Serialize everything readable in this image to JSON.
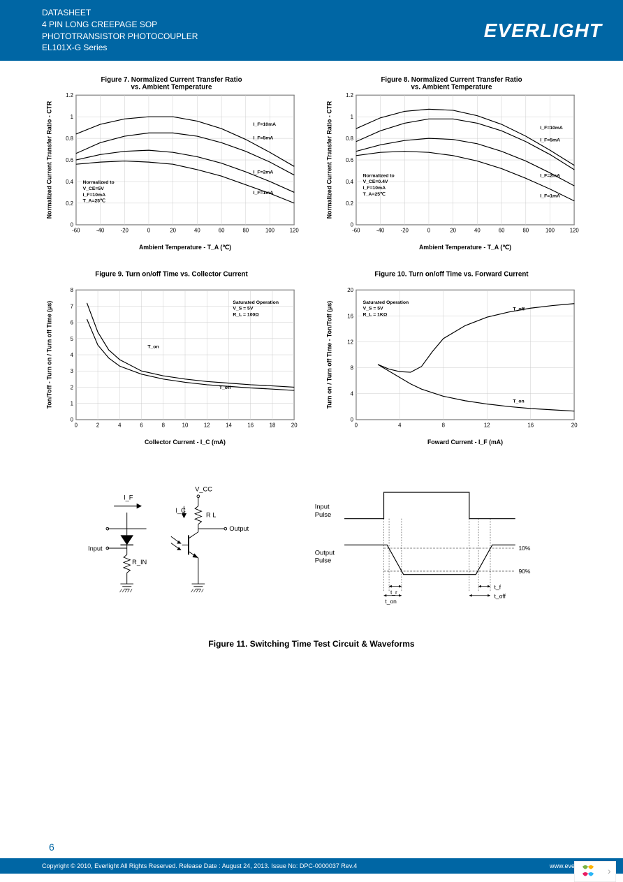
{
  "header": {
    "line1": "DATASHEET",
    "line2": "4 PIN LONG CREEPAGE SOP",
    "line3": "PHOTOTRANSISTOR PHOTOCOUPLER",
    "line4": "EL101X-G Series",
    "brand": "EVERLIGHT"
  },
  "fig7": {
    "title": "Figure 7. Normalized Current Transfer Ratio\nvs. Ambient Temperature",
    "xlabel": "Ambient Temperature - T_A (℃)",
    "ylabel": "Normalized Current Transfer Ratio - CTR",
    "xlim": [
      -60,
      120
    ],
    "ylim": [
      0,
      1.2
    ],
    "xticks": [
      -60,
      -40,
      -20,
      0,
      20,
      40,
      60,
      80,
      100,
      120
    ],
    "yticks": [
      0,
      0.2,
      0.4,
      0.6,
      0.8,
      1.0,
      1.2
    ],
    "series": [
      {
        "label": "I_F=10mA",
        "data": [
          [
            -60,
            0.84
          ],
          [
            -40,
            0.93
          ],
          [
            -20,
            0.98
          ],
          [
            0,
            1.0
          ],
          [
            20,
            1.0
          ],
          [
            40,
            0.96
          ],
          [
            60,
            0.89
          ],
          [
            80,
            0.79
          ],
          [
            100,
            0.67
          ],
          [
            120,
            0.54
          ]
        ]
      },
      {
        "label": "I_F=5mA",
        "data": [
          [
            -60,
            0.66
          ],
          [
            -40,
            0.76
          ],
          [
            -20,
            0.82
          ],
          [
            0,
            0.85
          ],
          [
            20,
            0.85
          ],
          [
            40,
            0.82
          ],
          [
            60,
            0.76
          ],
          [
            80,
            0.68
          ],
          [
            100,
            0.58
          ],
          [
            120,
            0.46
          ]
        ]
      },
      {
        "label": "I_F=2mA",
        "data": [
          [
            -60,
            0.6
          ],
          [
            -40,
            0.65
          ],
          [
            -20,
            0.68
          ],
          [
            0,
            0.69
          ],
          [
            20,
            0.67
          ],
          [
            40,
            0.63
          ],
          [
            60,
            0.57
          ],
          [
            80,
            0.49
          ],
          [
            100,
            0.4
          ],
          [
            120,
            0.3
          ]
        ]
      },
      {
        "label": "I_F=1mA",
        "data": [
          [
            -60,
            0.56
          ],
          [
            -40,
            0.58
          ],
          [
            -20,
            0.59
          ],
          [
            0,
            0.58
          ],
          [
            20,
            0.56
          ],
          [
            40,
            0.51
          ],
          [
            60,
            0.45
          ],
          [
            80,
            0.37
          ],
          [
            100,
            0.29
          ],
          [
            120,
            0.2
          ]
        ]
      }
    ],
    "note": "Normalized to\nV_CE=5V\nI_F=10mA\nT_A=25℃",
    "line_color": "#000000",
    "grid_color": "#cccccc",
    "bg_color": "#ffffff"
  },
  "fig8": {
    "title": "Figure 8. Normalized Current Transfer Ratio\nvs. Ambient Temperature",
    "xlabel": "Ambient Temperature - T_A (℃)",
    "ylabel": "Normalized Current Transfer Ratio - CTR",
    "xlim": [
      -60,
      120
    ],
    "ylim": [
      0,
      1.2
    ],
    "xticks": [
      -60,
      -40,
      -20,
      0,
      20,
      40,
      60,
      80,
      100,
      120
    ],
    "yticks": [
      0,
      0.2,
      0.4,
      0.6,
      0.8,
      1.0,
      1.2
    ],
    "series": [
      {
        "label": "I_F=10mA",
        "data": [
          [
            -60,
            0.89
          ],
          [
            -40,
            0.99
          ],
          [
            -20,
            1.05
          ],
          [
            0,
            1.07
          ],
          [
            20,
            1.06
          ],
          [
            40,
            1.01
          ],
          [
            60,
            0.93
          ],
          [
            80,
            0.82
          ],
          [
            100,
            0.69
          ],
          [
            120,
            0.55
          ]
        ]
      },
      {
        "label": "I_F=5mA",
        "data": [
          [
            -60,
            0.77
          ],
          [
            -40,
            0.87
          ],
          [
            -20,
            0.94
          ],
          [
            0,
            0.98
          ],
          [
            20,
            0.98
          ],
          [
            40,
            0.94
          ],
          [
            60,
            0.87
          ],
          [
            80,
            0.77
          ],
          [
            100,
            0.65
          ],
          [
            120,
            0.51
          ]
        ]
      },
      {
        "label": "I_F=2mA",
        "data": [
          [
            -60,
            0.68
          ],
          [
            -40,
            0.74
          ],
          [
            -20,
            0.78
          ],
          [
            0,
            0.8
          ],
          [
            20,
            0.79
          ],
          [
            40,
            0.75
          ],
          [
            60,
            0.68
          ],
          [
            80,
            0.59
          ],
          [
            100,
            0.48
          ],
          [
            120,
            0.36
          ]
        ]
      },
      {
        "label": "I_F=1mA",
        "data": [
          [
            -60,
            0.64
          ],
          [
            -40,
            0.67
          ],
          [
            -20,
            0.68
          ],
          [
            0,
            0.67
          ],
          [
            20,
            0.64
          ],
          [
            40,
            0.59
          ],
          [
            60,
            0.52
          ],
          [
            80,
            0.43
          ],
          [
            100,
            0.33
          ],
          [
            120,
            0.22
          ]
        ]
      }
    ],
    "note": "Normalized to\nV_CE=0.4V\nI_F=10mA\nT_A=25℃",
    "line_color": "#000000",
    "grid_color": "#cccccc",
    "bg_color": "#ffffff"
  },
  "fig9": {
    "title": "Figure 9. Turn on/off Time vs. Collector Current",
    "xlabel": "Collector Current - I_C  (mA)",
    "ylabel": "Ton/Toff - Turn on / Turn off Time  (μs)",
    "xlim": [
      0,
      20
    ],
    "ylim": [
      0,
      8
    ],
    "xticks": [
      0,
      2,
      4,
      6,
      8,
      10,
      12,
      14,
      16,
      18,
      20
    ],
    "yticks": [
      0,
      1,
      2,
      3,
      4,
      5,
      6,
      7,
      8
    ],
    "series": [
      {
        "label": "T_on",
        "data": [
          [
            1,
            7.2
          ],
          [
            2,
            5.4
          ],
          [
            3,
            4.3
          ],
          [
            4,
            3.7
          ],
          [
            6,
            3.0
          ],
          [
            8,
            2.7
          ],
          [
            10,
            2.5
          ],
          [
            12,
            2.35
          ],
          [
            14,
            2.25
          ],
          [
            16,
            2.15
          ],
          [
            18,
            2.08
          ],
          [
            20,
            2.0
          ]
        ]
      },
      {
        "label": "T_off",
        "data": [
          [
            1,
            6.2
          ],
          [
            2,
            4.6
          ],
          [
            3,
            3.8
          ],
          [
            4,
            3.3
          ],
          [
            6,
            2.8
          ],
          [
            8,
            2.5
          ],
          [
            10,
            2.3
          ],
          [
            12,
            2.15
          ],
          [
            14,
            2.05
          ],
          [
            16,
            1.95
          ],
          [
            18,
            1.88
          ],
          [
            20,
            1.8
          ]
        ]
      }
    ],
    "note": "Saturated Operation\nV_S = 5V\nR_L = 100Ω",
    "line_color": "#000000",
    "grid_color": "#cccccc",
    "bg_color": "#ffffff"
  },
  "fig10": {
    "title": "Figure 10. Turn on/off Time vs. Forward Current",
    "xlabel": "Foward Current - I_F  (mA)",
    "ylabel": "Turn on / Turn off Time - Ton/Toff (μs)",
    "xlim": [
      0,
      20
    ],
    "ylim": [
      0,
      20
    ],
    "xticks": [
      0,
      4,
      8,
      12,
      16,
      20
    ],
    "yticks": [
      0,
      4,
      8,
      12,
      16,
      20
    ],
    "series": [
      {
        "label": "T_off",
        "data": [
          [
            2,
            8.5
          ],
          [
            3,
            7.8
          ],
          [
            4,
            7.4
          ],
          [
            5,
            7.3
          ],
          [
            6,
            8.2
          ],
          [
            7,
            10.5
          ],
          [
            8,
            12.5
          ],
          [
            10,
            14.5
          ],
          [
            12,
            15.8
          ],
          [
            14,
            16.6
          ],
          [
            16,
            17.2
          ],
          [
            18,
            17.6
          ],
          [
            20,
            17.9
          ]
        ]
      },
      {
        "label": "T_on",
        "data": [
          [
            2,
            8.5
          ],
          [
            3,
            7.5
          ],
          [
            4,
            6.5
          ],
          [
            5,
            5.5
          ],
          [
            6,
            4.7
          ],
          [
            8,
            3.6
          ],
          [
            10,
            2.9
          ],
          [
            12,
            2.4
          ],
          [
            14,
            2.0
          ],
          [
            16,
            1.7
          ],
          [
            18,
            1.5
          ],
          [
            20,
            1.3
          ]
        ]
      }
    ],
    "note": "Saturated Operation\nV_S = 5V\nR_L = 1KΩ",
    "line_color": "#000000",
    "grid_color": "#cccccc",
    "bg_color": "#ffffff"
  },
  "fig11": {
    "caption": "Figure 11. Switching Time Test Circuit & Waveforms",
    "labels": {
      "vcc": "V_CC",
      "if": "I_F",
      "ic": "I_C",
      "rl": "R L",
      "output": "Output",
      "input": "Input",
      "rin": "R_IN",
      "input_pulse": "Input\nPulse",
      "output_pulse": "Output\nPulse",
      "p10": "10%",
      "p90": "90%",
      "tr": "t_r",
      "ton": "t_on",
      "tf": "t_f",
      "toff": "t_off"
    }
  },
  "footer": {
    "page": "6",
    "copyright": "Copyright © 2010, Everlight All Rights Reserved. Release Date : August 24, 2013. Issue No: DPC-0000037 Rev.4",
    "url": "www.everlight.com"
  },
  "colors": {
    "header_bg": "#0066a4",
    "header_text": "#ffffff"
  }
}
